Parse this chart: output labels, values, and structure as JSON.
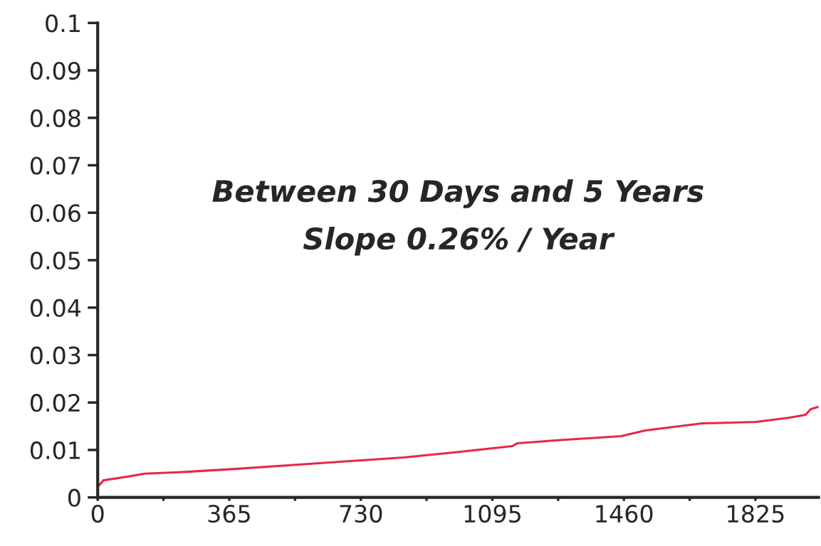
{
  "chart_data": {
    "type": "line",
    "annotations": [
      "Between 30 Days and 5 Years",
      "Slope 0.26% / Year"
    ],
    "x": [
      0,
      2,
      16,
      85,
      130,
      249,
      381,
      558,
      730,
      848,
      1006,
      1150,
      1164,
      1268,
      1452,
      1519,
      1677,
      1826,
      1919,
      1964,
      1978,
      2000
    ],
    "series": [
      {
        "color": "#e8264a",
        "values": [
          0.0022,
          0.0024,
          0.0036,
          0.0044,
          0.005,
          0.0054,
          0.006,
          0.0069,
          0.0078,
          0.0084,
          0.0096,
          0.0108,
          0.0114,
          0.012,
          0.0129,
          0.0141,
          0.0156,
          0.0159,
          0.0168,
          0.0174,
          0.0186,
          0.0191
        ]
      }
    ],
    "xlim": [
      0,
      2000
    ],
    "xticks": [
      0,
      {
        "value": 182.5,
        "label": null
      },
      365,
      {
        "value": 547.5,
        "label": null
      },
      730,
      {
        "value": 912.5,
        "label": null
      },
      1095,
      {
        "value": 1277.5,
        "label": null
      },
      1460,
      {
        "value": 1642.5,
        "label": null
      },
      1825
    ],
    "ylim": [
      0,
      0.1
    ],
    "yticks": [
      0,
      0.01,
      0.02,
      0.03,
      0.04,
      0.05,
      0.06,
      0.07,
      0.08,
      0.09,
      0.1
    ],
    "marker": "none",
    "line_style": "solid"
  }
}
